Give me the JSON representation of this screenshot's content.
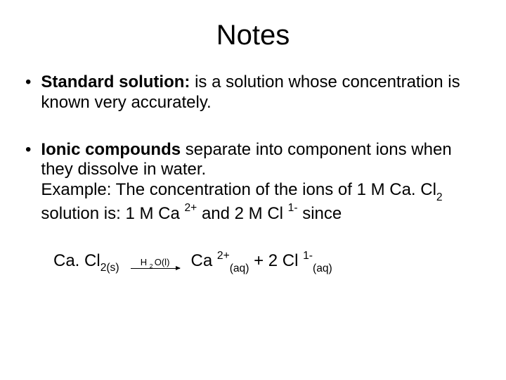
{
  "title": "Notes",
  "bullets": {
    "item1": {
      "marker": "•",
      "term": "Standard solution:",
      "rest": " is a solution whose concentration is known very accurately."
    },
    "item2": {
      "marker": "•",
      "term": "Ionic compounds",
      "rest1": " separate into component ions when they dissolve in water.",
      "example_label": "Example: The concentration of the ions of 1 M Ca. Cl",
      "sub2": "2",
      "rest2": " solution is: 1 M Ca ",
      "sup2p": "2+",
      "rest3": " and 2 M Cl ",
      "sup1m": "1-",
      "rest4": " since"
    }
  },
  "equation": {
    "reactant": "Ca. Cl",
    "reactant_sub": "2(s)",
    "arrow_label_h": "H ",
    "arrow_label_sub2": "2 ",
    "arrow_label_ol": "O(l)",
    "product1": "Ca ",
    "product1_sup": "2+",
    "product1_sub": "(aq)",
    "plus": "  + 2 Cl ",
    "product2_sup": "1-",
    "product2_sub": "(aq)"
  },
  "colors": {
    "background": "#ffffff",
    "text": "#000000"
  },
  "typography": {
    "title_fontsize": 40,
    "body_fontsize": 24,
    "font_family": "Arial"
  }
}
